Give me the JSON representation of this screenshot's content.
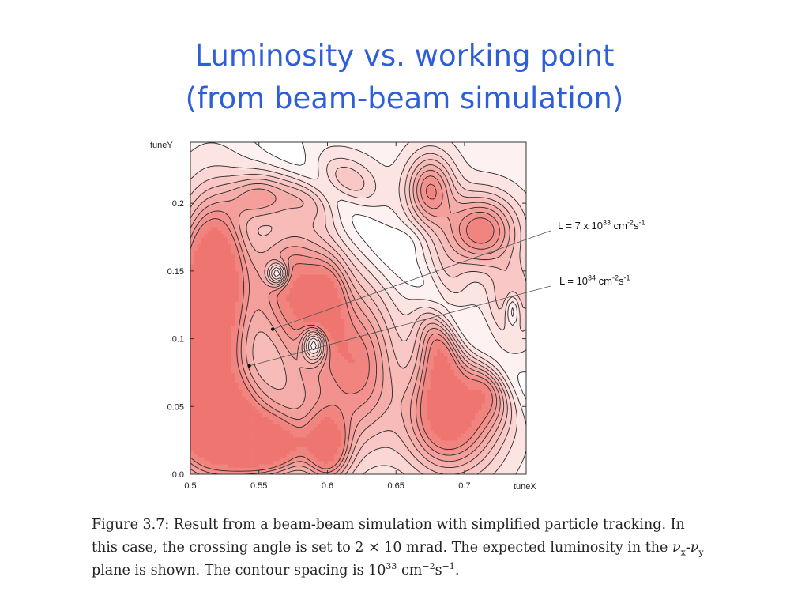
{
  "title": {
    "line1": "Luminosity vs. working point",
    "line2": "(from beam-beam simulation)"
  },
  "chart_data": {
    "type": "heatmap",
    "xlabel": "tuneX",
    "ylabel": "tuneY",
    "xlim": [
      0.5,
      0.745
    ],
    "ylim": [
      0.0,
      0.245
    ],
    "x_ticks": [
      "0.5",
      "0.55",
      "0.6",
      "0.65",
      "0.7"
    ],
    "y_ticks": [
      "0.0",
      "0.05",
      "0.1",
      "0.15",
      "0.2"
    ],
    "contour_spacing": "10^33 cm^-2 s^-1",
    "color_low": "#ffffff",
    "color_high": "#ef7670",
    "annotations": [
      {
        "label_base": "L = 7 x 10",
        "label_exp": "33",
        "label_unit": " cm",
        "label_unit_exp": "-2",
        "label_s": "s",
        "label_s_exp": "-1",
        "point": [
          0.56,
          0.107
        ]
      },
      {
        "label_base": "L = 10",
        "label_exp": "34",
        "label_unit": " cm",
        "label_unit_exp": "-2",
        "label_s": "s",
        "label_s_exp": "-1",
        "point": [
          0.543,
          0.08
        ]
      }
    ]
  },
  "caption": {
    "line1": "Figure 3.7: Result from a beam-beam simulation with simplified particle tracking. In",
    "line2_a": "this case, the crossing angle is set to 2 × 10 mrad. The expected luminosity in the ",
    "line2_nu1": "ν",
    "line2_sub1": "x",
    "line2_dash": "-",
    "line2_nu2": "ν",
    "line2_sub2": "y",
    "line3_a": "plane is shown. The contour spacing is 10",
    "line3_exp1": "33",
    "line3_b": " cm",
    "line3_exp2": "−2",
    "line3_c": "s",
    "line3_exp3": "−1",
    "line3_d": "."
  }
}
